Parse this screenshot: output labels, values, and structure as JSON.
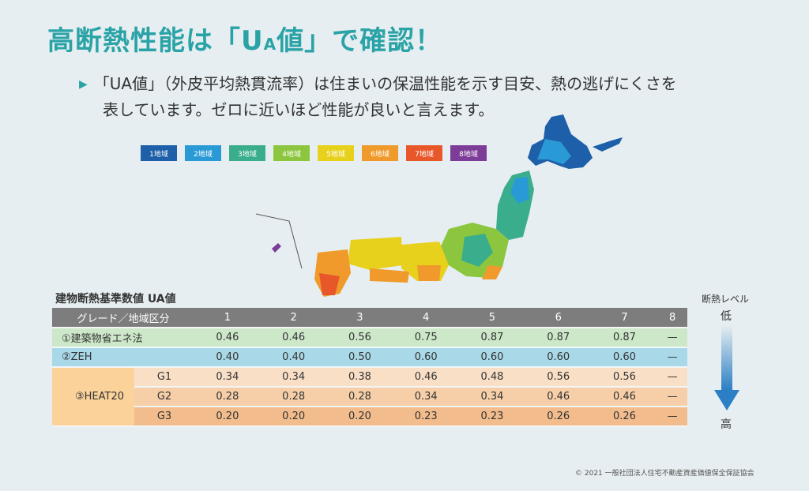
{
  "title": {
    "pre": "高断熱性能は「U",
    "sub": "A",
    "post": "値」で確認！"
  },
  "description": {
    "line1": "「UA値」（外皮平均熱貫流率）は住まいの保温性能を示す目安、熱の逃げにくさを",
    "line2": "表しています。ゼロに近いほど性能が良いと言えます。"
  },
  "legend": [
    {
      "label": "1地域",
      "color": "#1d5fa8"
    },
    {
      "label": "2地域",
      "color": "#2a9ad6"
    },
    {
      "label": "3地域",
      "color": "#3aae8c"
    },
    {
      "label": "4地域",
      "color": "#8cc63f"
    },
    {
      "label": "5地域",
      "color": "#e8d11c"
    },
    {
      "label": "6地域",
      "color": "#ef9a2a"
    },
    {
      "label": "7地域",
      "color": "#e8572a"
    },
    {
      "label": "8地域",
      "color": "#7d3c98"
    }
  ],
  "table": {
    "title": "建物断熱基準数値 UA値",
    "header": [
      "グレード／地域区分",
      "1",
      "2",
      "3",
      "4",
      "5",
      "6",
      "7",
      "8"
    ],
    "rows": {
      "kensho": {
        "label": "①建築物省エネ法",
        "values": [
          "0.46",
          "0.46",
          "0.56",
          "0.75",
          "0.87",
          "0.87",
          "0.87",
          "—"
        ]
      },
      "zeh": {
        "label": "②ZEH",
        "values": [
          "0.40",
          "0.40",
          "0.50",
          "0.60",
          "0.60",
          "0.60",
          "0.60",
          "—"
        ]
      },
      "heat20": {
        "label": "③HEAT20"
      },
      "g1": {
        "label": "G1",
        "values": [
          "0.34",
          "0.34",
          "0.38",
          "0.46",
          "0.48",
          "0.56",
          "0.56",
          "—"
        ]
      },
      "g2": {
        "label": "G2",
        "values": [
          "0.28",
          "0.28",
          "0.28",
          "0.34",
          "0.34",
          "0.46",
          "0.46",
          "—"
        ]
      },
      "g3": {
        "label": "G3",
        "values": [
          "0.20",
          "0.20",
          "0.20",
          "0.23",
          "0.23",
          "0.26",
          "0.26",
          "—"
        ]
      }
    }
  },
  "level": {
    "label": "断熱レベル",
    "low": "低",
    "high": "高"
  },
  "copyright": "© 2021 一般社団法人住宅不動産資産価値保全保証協会"
}
